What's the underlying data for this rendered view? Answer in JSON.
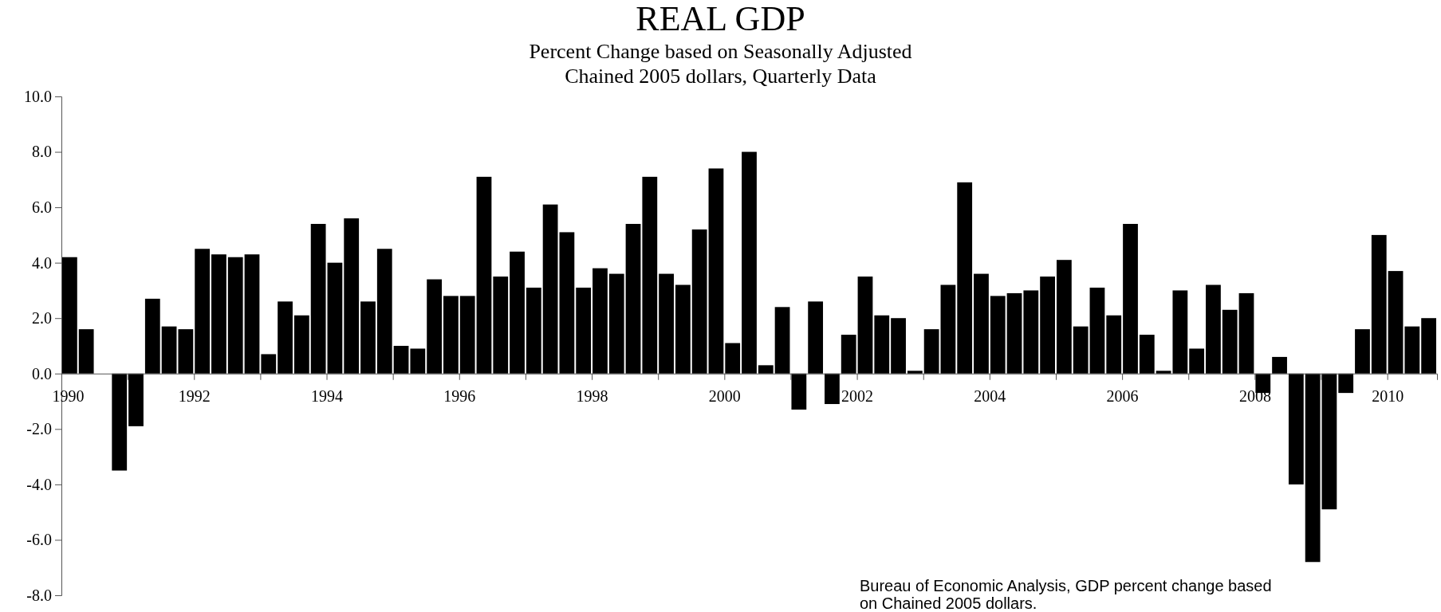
{
  "chart_data": {
    "type": "bar",
    "title": "REAL GDP",
    "subtitle": "Percent Change based on Seasonally Adjusted\nChained 2005 dollars, Quarterly Data",
    "x": [
      1990.125,
      1990.375,
      1990.625,
      1990.875,
      1991.125,
      1991.375,
      1991.625,
      1991.875,
      1992.125,
      1992.375,
      1992.625,
      1992.875,
      1993.125,
      1993.375,
      1993.625,
      1993.875,
      1994.125,
      1994.375,
      1994.625,
      1994.875,
      1995.125,
      1995.375,
      1995.625,
      1995.875,
      1996.125,
      1996.375,
      1996.625,
      1996.875,
      1997.125,
      1997.375,
      1997.625,
      1997.875,
      1998.125,
      1998.375,
      1998.625,
      1998.875,
      1999.125,
      1999.375,
      1999.625,
      1999.875,
      2000.125,
      2000.375,
      2000.625,
      2000.875,
      2001.125,
      2001.375,
      2001.625,
      2001.875,
      2002.125,
      2002.375,
      2002.625,
      2002.875,
      2003.125,
      2003.375,
      2003.625,
      2003.875,
      2004.125,
      2004.375,
      2004.625,
      2004.875,
      2005.125,
      2005.375,
      2005.625,
      2005.875,
      2006.125,
      2006.375,
      2006.625,
      2006.875,
      2007.125,
      2007.375,
      2007.625,
      2007.875,
      2008.125,
      2008.375,
      2008.625,
      2008.875,
      2009.125,
      2009.375,
      2009.625,
      2009.875,
      2010.125,
      2010.375,
      2010.625
    ],
    "values": [
      4.2,
      1.6,
      0.0,
      -3.5,
      -1.9,
      2.7,
      1.7,
      1.6,
      4.5,
      4.3,
      4.2,
      4.3,
      0.7,
      2.6,
      2.1,
      5.4,
      4.0,
      5.6,
      2.6,
      4.5,
      1.0,
      0.9,
      3.4,
      2.8,
      2.8,
      7.1,
      3.5,
      4.4,
      3.1,
      6.1,
      5.1,
      3.1,
      3.8,
      3.6,
      5.4,
      7.1,
      3.6,
      3.2,
      5.2,
      7.4,
      1.1,
      8.0,
      0.3,
      2.4,
      -1.3,
      2.6,
      -1.1,
      1.4,
      3.5,
      2.1,
      2.0,
      0.1,
      1.6,
      3.2,
      6.9,
      3.6,
      2.8,
      2.9,
      3.0,
      3.5,
      4.1,
      1.7,
      3.1,
      2.1,
      5.4,
      1.4,
      0.1,
      3.0,
      0.9,
      3.2,
      2.3,
      2.9,
      -0.7,
      0.6,
      -4.0,
      -6.8,
      -4.9,
      -0.7,
      1.6,
      5.0,
      3.7,
      1.7,
      2.0
    ],
    "color": "#000000",
    "xlim": [
      1990,
      2010.75
    ],
    "xticks": [
      1990,
      {
        "value": 1991,
        "label": null
      },
      1992,
      {
        "value": 1993,
        "label": null
      },
      1994,
      {
        "value": 1995,
        "label": null
      },
      1996,
      {
        "value": 1997,
        "label": null
      },
      1998,
      {
        "value": 1999,
        "label": null
      },
      2000,
      {
        "value": 2001,
        "label": null
      },
      2002,
      {
        "value": 2003,
        "label": null
      },
      2004,
      {
        "value": 2005,
        "label": null
      },
      2006,
      {
        "value": 2007,
        "label": null
      },
      2008,
      {
        "value": 2009,
        "label": null
      },
      2010
    ],
    "ylim": [
      -8,
      10
    ],
    "yticks": [
      {
        "value": -8,
        "label": "-8.0"
      },
      {
        "value": -6,
        "label": "-6.0"
      },
      {
        "value": -4,
        "label": "-4.0"
      },
      {
        "value": -2,
        "label": "-2.0"
      },
      {
        "value": 0,
        "label": "0.0"
      },
      {
        "value": 2,
        "label": "2.0"
      },
      {
        "value": 4,
        "label": "4.0"
      },
      {
        "value": 6,
        "label": "6.0"
      },
      {
        "value": 8,
        "label": "8.0"
      },
      {
        "value": 10,
        "label": "10.0"
      }
    ],
    "annotations": [
      "Bureau of Economic Analysis, GDP percent change based\non Chained 2005 dollars."
    ]
  }
}
